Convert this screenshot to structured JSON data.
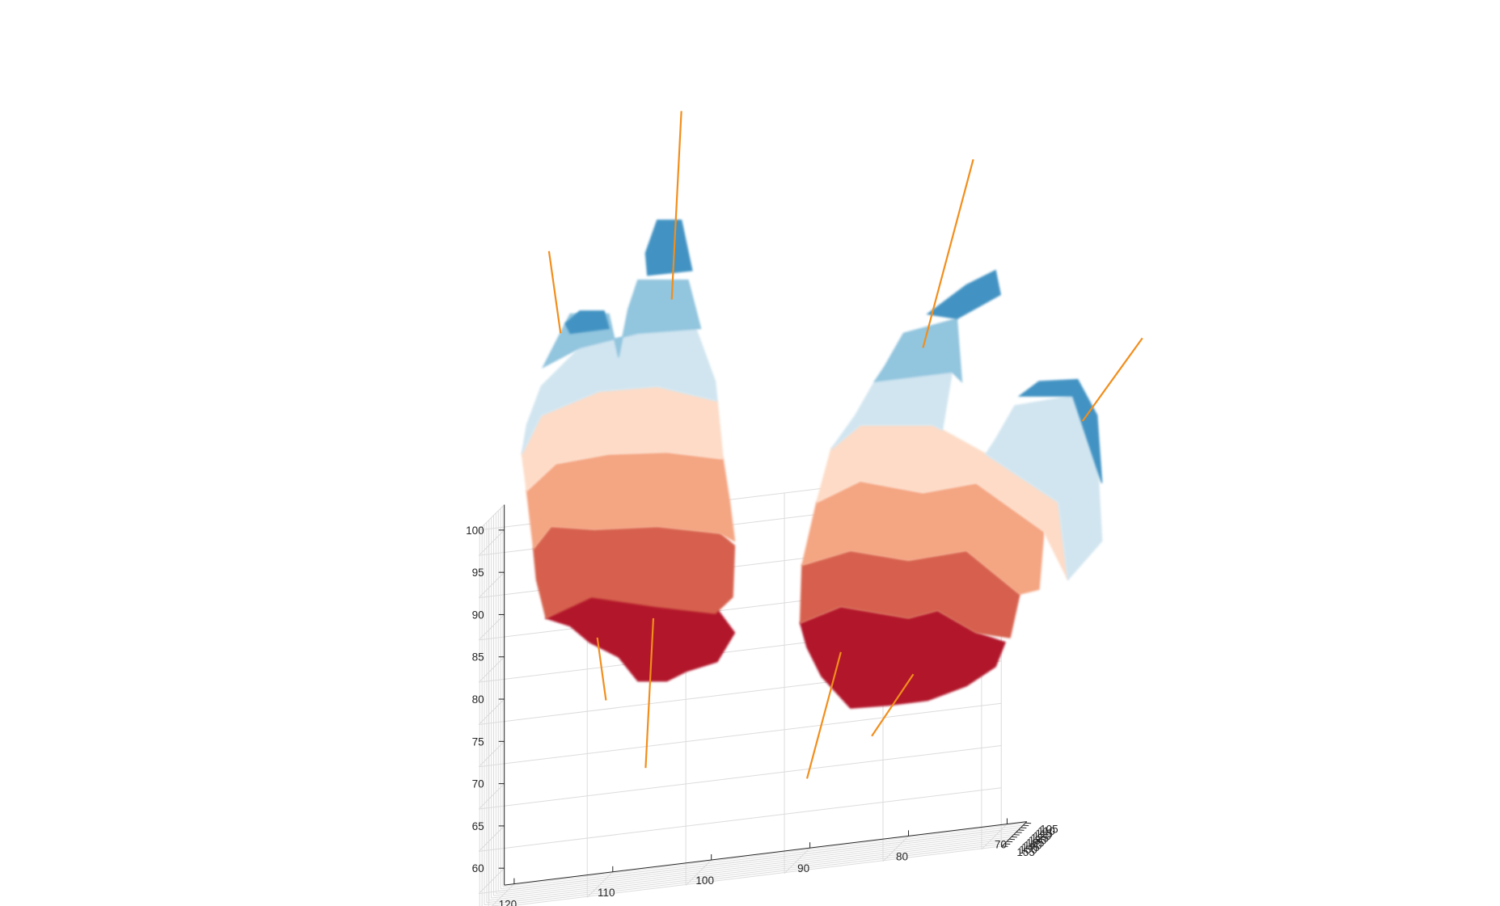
{
  "chart_data": {
    "type": "3d-voxel",
    "title": "",
    "xlabel": "",
    "ylabel": "",
    "zlabel": "",
    "x_axis": {
      "ticks": [
        120,
        110,
        100,
        90,
        80,
        70
      ],
      "range": [
        68,
        121
      ]
    },
    "y_axis": {
      "ticks": [
        105,
        110,
        115,
        120,
        125,
        130,
        135,
        140,
        145,
        150,
        155
      ],
      "range": [
        102,
        157
      ]
    },
    "z_axis": {
      "ticks": [
        60,
        65,
        70,
        75,
        80,
        85,
        90,
        95,
        100
      ],
      "range": [
        58,
        103
      ]
    },
    "grid": true,
    "legend": "none",
    "objects": [
      {
        "name": "",
        "z_bands": [
          {
            "z": 67,
            "color": "#b2182b"
          },
          {
            "z": 73,
            "color": "#d6604d"
          },
          {
            "z": 79,
            "color": "#f4a582"
          },
          {
            "z": 85,
            "color": "#fddbc7"
          },
          {
            "z": 90,
            "color": "#d1e5f0"
          },
          {
            "z": 95,
            "color": "#92c5de"
          },
          {
            "z": 99,
            "color": "#4393c3"
          }
        ]
      },
      {
        "name": "",
        "z_bands": [
          {
            "z": 66,
            "color": "#b2182b"
          },
          {
            "z": 72,
            "color": "#d6604d"
          },
          {
            "z": 78,
            "color": "#f4a582"
          },
          {
            "z": 84,
            "color": "#fddbc7"
          },
          {
            "z": 90,
            "color": "#d1e5f0"
          },
          {
            "z": 95,
            "color": "#92c5de"
          },
          {
            "z": 99,
            "color": "#4393c3"
          }
        ]
      }
    ],
    "principal_axes_color": "#f28e1c",
    "colors": {
      "axis": "#262626",
      "grid": "#dcdcdc",
      "band_colors": [
        "#b2182b",
        "#d6604d",
        "#f4a582",
        "#fddbc7",
        "#d1e5f0",
        "#92c5de",
        "#4393c3"
      ]
    }
  }
}
